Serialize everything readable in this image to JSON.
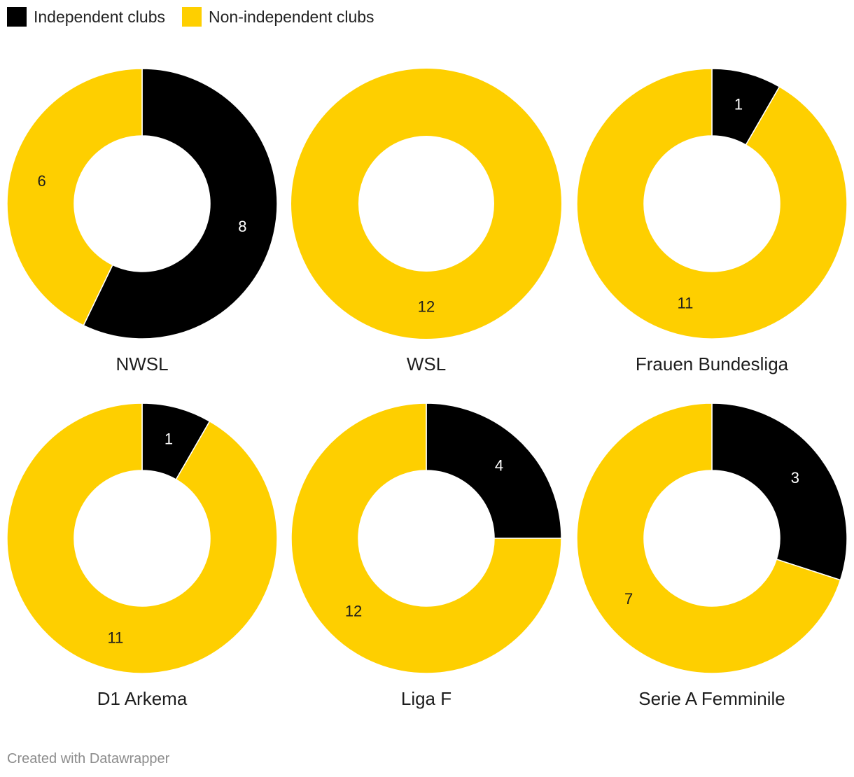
{
  "legend": {
    "items": [
      {
        "label": "Independent clubs",
        "color": "#000000"
      },
      {
        "label": "Non-independent clubs",
        "color": "#fecf00"
      }
    ]
  },
  "chart_data": [
    {
      "type": "pie",
      "variant": "donut",
      "title": "NWSL",
      "categories": [
        "Independent clubs",
        "Non-independent clubs"
      ],
      "values": [
        8,
        6
      ],
      "colors": [
        "#000000",
        "#fecf00"
      ]
    },
    {
      "type": "pie",
      "variant": "donut",
      "title": "WSL",
      "categories": [
        "Independent clubs",
        "Non-independent clubs"
      ],
      "values": [
        0,
        12
      ],
      "colors": [
        "#000000",
        "#fecf00"
      ]
    },
    {
      "type": "pie",
      "variant": "donut",
      "title": "Frauen Bundesliga",
      "categories": [
        "Independent clubs",
        "Non-independent clubs"
      ],
      "values": [
        1,
        11
      ],
      "colors": [
        "#000000",
        "#fecf00"
      ]
    },
    {
      "type": "pie",
      "variant": "donut",
      "title": "D1 Arkema",
      "categories": [
        "Independent clubs",
        "Non-independent clubs"
      ],
      "values": [
        1,
        11
      ],
      "colors": [
        "#000000",
        "#fecf00"
      ]
    },
    {
      "type": "pie",
      "variant": "donut",
      "title": "Liga F",
      "categories": [
        "Independent clubs",
        "Non-independent clubs"
      ],
      "values": [
        4,
        12
      ],
      "colors": [
        "#000000",
        "#fecf00"
      ]
    },
    {
      "type": "pie",
      "variant": "donut",
      "title": "Serie A Femminile",
      "categories": [
        "Independent clubs",
        "Non-independent clubs"
      ],
      "values": [
        3,
        7
      ],
      "colors": [
        "#000000",
        "#fecf00"
      ]
    }
  ],
  "footer": {
    "credit": "Created with Datawrapper"
  }
}
